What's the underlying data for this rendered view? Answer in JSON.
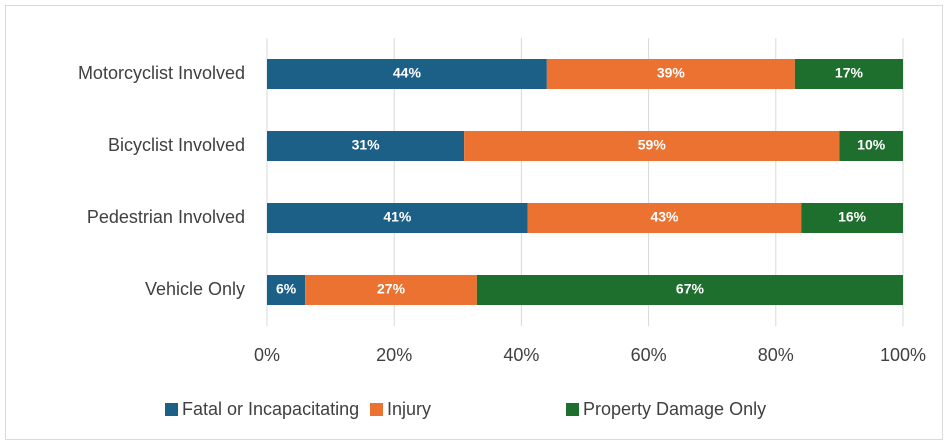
{
  "chart_data": {
    "type": "stacked-bar-horizontal",
    "categories": [
      "Motorcyclist Involved",
      "Bicyclist Involved",
      "Pedestrian Involved",
      "Vehicle Only"
    ],
    "series": [
      {
        "name": "Fatal or Incapacitating",
        "color": "#1c5f87",
        "values": [
          44,
          31,
          41,
          6
        ],
        "value_labels": [
          "44%",
          "31%",
          "41%",
          "6%"
        ]
      },
      {
        "name": "Injury",
        "color": "#ec7232",
        "values": [
          39,
          59,
          43,
          27
        ],
        "value_labels": [
          "39%",
          "59%",
          "43%",
          "27%"
        ]
      },
      {
        "name": "Property Damage Only",
        "color": "#1e6e2d",
        "values": [
          17,
          10,
          16,
          67
        ],
        "value_labels": [
          "17%",
          "10%",
          "16%",
          "67%"
        ]
      }
    ],
    "xlim": [
      0,
      100
    ],
    "xticks": [
      {
        "value": 0,
        "label": "0%"
      },
      {
        "value": 20,
        "label": "20%"
      },
      {
        "value": 40,
        "label": "40%"
      },
      {
        "value": 60,
        "label": "60%"
      },
      {
        "value": 80,
        "label": "80%"
      },
      {
        "value": 100,
        "label": "100%"
      }
    ],
    "grid": true,
    "legend": "bottom"
  }
}
